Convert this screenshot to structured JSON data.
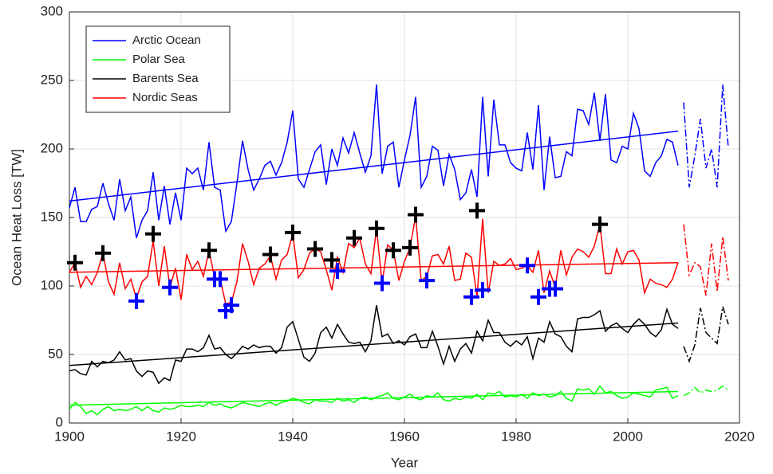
{
  "chart_data": {
    "type": "line",
    "x_label": "Year",
    "y_label": "Ocean Heat Loss [TW]",
    "xlim": [
      1900,
      2020
    ],
    "xticks": [
      1900,
      1920,
      1940,
      1960,
      1980,
      2000,
      2020
    ],
    "ylim": [
      0,
      300
    ],
    "yticks": [
      0,
      50,
      100,
      150,
      200,
      250,
      300
    ],
    "grid": true,
    "legend": "upper left",
    "x": [
      1900,
      1901,
      1902,
      1903,
      1904,
      1905,
      1906,
      1907,
      1908,
      1909,
      1910,
      1911,
      1912,
      1913,
      1914,
      1915,
      1916,
      1917,
      1918,
      1919,
      1920,
      1921,
      1922,
      1923,
      1924,
      1925,
      1926,
      1927,
      1928,
      1929,
      1930,
      1931,
      1932,
      1933,
      1934,
      1935,
      1936,
      1937,
      1938,
      1939,
      1940,
      1941,
      1942,
      1943,
      1944,
      1945,
      1946,
      1947,
      1948,
      1949,
      1950,
      1951,
      1952,
      1953,
      1954,
      1955,
      1956,
      1957,
      1958,
      1959,
      1960,
      1961,
      1962,
      1963,
      1964,
      1965,
      1966,
      1967,
      1968,
      1969,
      1970,
      1971,
      1972,
      1973,
      1974,
      1975,
      1976,
      1977,
      1978,
      1979,
      1980,
      1981,
      1982,
      1983,
      1984,
      1985,
      1986,
      1987,
      1988,
      1989,
      1990,
      1991,
      1992,
      1993,
      1994,
      1995,
      1996,
      1997,
      1998,
      1999,
      2000,
      2001,
      2002,
      2003,
      2004,
      2005,
      2006,
      2007,
      2008,
      2009
    ],
    "series": [
      {
        "name": "Arctic Ocean",
        "color": "#0000ff",
        "values": [
          157,
          172,
          147,
          147,
          156,
          158,
          175,
          160,
          148,
          178,
          155,
          165,
          135,
          148,
          155,
          183,
          148,
          173,
          145,
          168,
          148,
          186,
          182,
          186,
          170,
          205,
          172,
          170,
          140,
          147,
          175,
          206,
          185,
          170,
          178,
          188,
          191,
          181,
          190,
          205,
          228,
          178,
          172,
          185,
          198,
          203,
          174,
          200,
          188,
          208,
          197,
          212,
          197,
          183,
          195,
          247,
          182,
          202,
          205,
          172,
          192,
          210,
          238,
          172,
          180,
          202,
          199,
          173,
          196,
          185,
          163,
          168,
          185,
          165,
          238,
          180,
          236,
          203,
          203,
          190,
          186,
          184,
          212,
          185,
          232,
          170,
          209,
          179,
          180,
          198,
          195,
          229,
          228,
          218,
          241,
          206,
          240,
          192,
          190,
          202,
          200,
          226,
          215,
          184,
          180,
          190,
          195,
          207,
          205,
          188
        ],
        "extension": {
          "x": [
            2010,
            2011,
            2012,
            2013,
            2014,
            2015,
            2016,
            2017,
            2018
          ],
          "values": [
            234,
            172,
            195,
            222,
            186,
            200,
            172,
            247,
            201
          ]
        },
        "trend": {
          "x": [
            1900,
            2009
          ],
          "values": [
            162,
            213
          ]
        }
      },
      {
        "name": "Polar Sea",
        "color": "#00ff00",
        "values": [
          10,
          15,
          12,
          7,
          9,
          6,
          10,
          12,
          9,
          10,
          9,
          10,
          12,
          9,
          12,
          9,
          8,
          11,
          10,
          11,
          13,
          12,
          12,
          13,
          12,
          15,
          13,
          14,
          12,
          11,
          13,
          15,
          14,
          13,
          12,
          14,
          15,
          13,
          15,
          16,
          18,
          17,
          15,
          14,
          17,
          16,
          16,
          15,
          18,
          16,
          17,
          15,
          18,
          19,
          17,
          19,
          20,
          22,
          18,
          17,
          19,
          21,
          18,
          17,
          20,
          19,
          22,
          17,
          16,
          18,
          17,
          19,
          18,
          21,
          17,
          22,
          21,
          23,
          19,
          20,
          19,
          21,
          18,
          22,
          20,
          21,
          19,
          20,
          23,
          18,
          16,
          25,
          24,
          25,
          21,
          27,
          22,
          23,
          20,
          18,
          19,
          22,
          21,
          20,
          19,
          24,
          25,
          26,
          18,
          20
        ],
        "extension": {
          "x": [
            2010,
            2011,
            2012,
            2013,
            2014,
            2015,
            2016,
            2017,
            2018
          ],
          "values": [
            20,
            22,
            26,
            22,
            24,
            23,
            24,
            27,
            24
          ]
        },
        "trend": {
          "x": [
            1900,
            2009
          ],
          "values": [
            13,
            23
          ]
        }
      },
      {
        "name": "Barents Sea",
        "color": "#000000",
        "values": [
          38,
          39,
          36,
          35,
          45,
          41,
          45,
          44,
          46,
          52,
          46,
          47,
          38,
          34,
          38,
          37,
          29,
          33,
          31,
          46,
          45,
          54,
          54,
          52,
          55,
          64,
          54,
          55,
          50,
          47,
          51,
          56,
          54,
          57,
          55,
          56,
          56,
          51,
          55,
          70,
          74,
          61,
          48,
          45,
          51,
          66,
          70,
          62,
          72,
          65,
          59,
          58,
          59,
          52,
          60,
          86,
          63,
          65,
          58,
          60,
          57,
          63,
          65,
          55,
          55,
          67,
          56,
          43,
          56,
          45,
          54,
          58,
          51,
          67,
          60,
          75,
          66,
          66,
          59,
          56,
          60,
          57,
          63,
          47,
          62,
          59,
          74,
          65,
          63,
          56,
          52,
          76,
          77,
          77,
          79,
          82,
          67,
          71,
          73,
          69,
          66,
          72,
          76,
          72,
          66,
          63,
          68,
          83,
          72,
          69
        ],
        "extension": {
          "x": [
            2010,
            2011,
            2012,
            2013,
            2014,
            2015,
            2016,
            2017,
            2018
          ],
          "values": [
            56,
            45,
            57,
            84,
            66,
            62,
            58,
            85,
            72
          ]
        },
        "trend": {
          "x": [
            1900,
            2009
          ],
          "values": [
            42,
            73
          ]
        }
      },
      {
        "name": "Nordic Seas",
        "color": "#ff0000",
        "values": [
          110,
          117,
          99,
          107,
          101,
          110,
          124,
          103,
          94,
          117,
          98,
          105,
          91,
          103,
          107,
          133,
          100,
          129,
          99,
          113,
          90,
          123,
          112,
          118,
          107,
          126,
          106,
          105,
          87,
          88,
          103,
          131,
          118,
          101,
          113,
          116,
          122,
          105,
          119,
          123,
          138,
          106,
          112,
          124,
          127,
          125,
          112,
          97,
          121,
          110,
          131,
          128,
          135,
          116,
          109,
          142,
          102,
          130,
          126,
          104,
          118,
          128,
          151,
          104,
          107,
          122,
          123,
          116,
          129,
          104,
          105,
          124,
          121,
          92,
          149,
          95,
          118,
          115,
          116,
          120,
          112,
          113,
          115,
          110,
          126,
          95,
          111,
          99,
          126,
          108,
          121,
          127,
          125,
          121,
          129,
          145,
          109,
          109,
          127,
          116,
          125,
          126,
          119,
          95,
          105,
          102,
          101,
          99,
          105,
          117
        ],
        "extension": {
          "x": [
            2010,
            2011,
            2012,
            2013,
            2014,
            2015,
            2016,
            2017,
            2018
          ],
          "values": [
            145,
            108,
            117,
            114,
            93,
            131,
            96,
            136,
            104
          ]
        },
        "trend": {
          "x": [
            1900,
            2009
          ],
          "values": [
            110,
            117
          ]
        }
      }
    ],
    "markers": [
      {
        "color": "#000000",
        "x": [
          1901,
          1906,
          1915,
          1925,
          1936,
          1940,
          1944,
          1947,
          1951,
          1955,
          1958,
          1961,
          1962,
          1973,
          1995
        ],
        "values": [
          117,
          124,
          138,
          126,
          123,
          139,
          127,
          119,
          135,
          142,
          126,
          128,
          152,
          155,
          145
        ]
      },
      {
        "color": "#0000ff",
        "x": [
          1912,
          1918,
          1926,
          1927,
          1928,
          1929,
          1948,
          1956,
          1964,
          1972,
          1974,
          1982,
          1984,
          1986,
          1987
        ],
        "values": [
          89,
          99,
          105,
          105,
          82,
          86,
          111,
          102,
          104,
          92,
          97,
          115,
          92,
          98,
          98
        ]
      }
    ]
  }
}
